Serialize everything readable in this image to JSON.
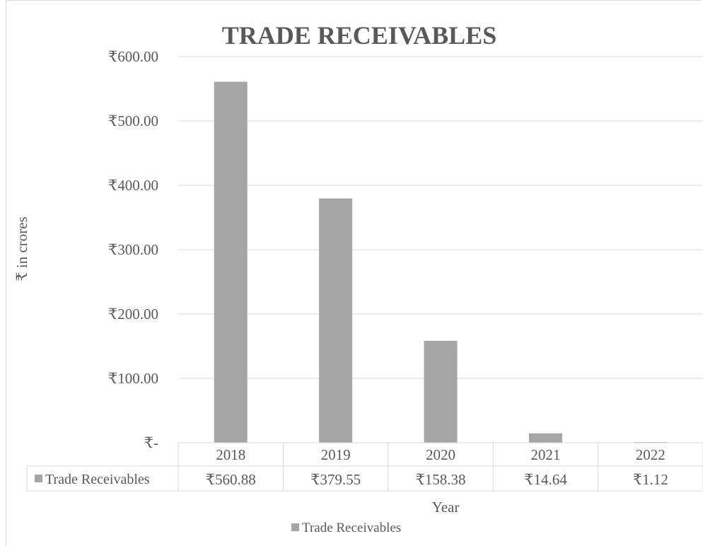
{
  "chart_data": {
    "type": "bar",
    "title": "TRADE RECEIVABLES",
    "xlabel": "Year",
    "ylabel": "₹ in crores",
    "categories": [
      "2018",
      "2019",
      "2020",
      "2021",
      "2022"
    ],
    "series": [
      {
        "name": "Trade Receivables",
        "values": [
          560.88,
          379.55,
          158.38,
          14.64,
          1.12
        ],
        "value_labels": [
          "₹560.88",
          "₹379.55",
          "₹158.38",
          "₹14.64",
          "₹1.12"
        ],
        "color": "#a5a5a5"
      }
    ],
    "ylim": [
      0,
      600
    ],
    "yticks": [
      {
        "value": 0,
        "label": "₹-"
      },
      {
        "value": 100,
        "label": "₹100.00"
      },
      {
        "value": 200,
        "label": "₹200.00"
      },
      {
        "value": 300,
        "label": "₹300.00"
      },
      {
        "value": 400,
        "label": "₹400.00"
      },
      {
        "value": 500,
        "label": "₹500.00"
      },
      {
        "value": 600,
        "label": "₹600.00"
      }
    ],
    "grid": true,
    "data_table": true,
    "legend": "bottom",
    "legend_label": "Trade Receivables"
  },
  "colors": {
    "bar": "#a5a5a5",
    "grid": "#d9d9d9",
    "text": "#595959",
    "title": "#595959"
  }
}
